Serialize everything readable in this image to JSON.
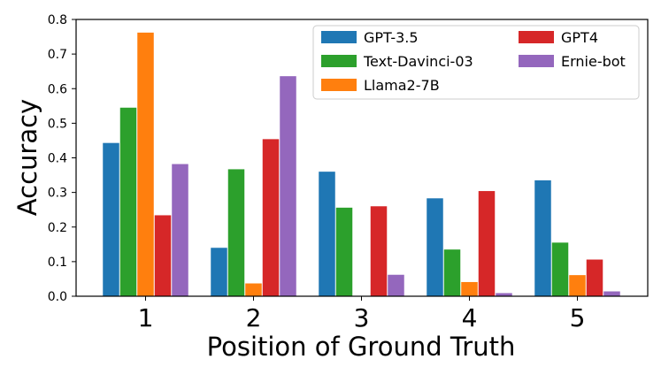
{
  "chart_data": {
    "type": "bar",
    "title": "",
    "xlabel": "Position of Ground Truth",
    "ylabel": "Accuracy",
    "categories": [
      "1",
      "2",
      "3",
      "4",
      "5"
    ],
    "ylim": [
      0,
      0.8
    ],
    "yticks": [
      "0.0",
      "0.1",
      "0.2",
      "0.3",
      "0.4",
      "0.5",
      "0.6",
      "0.7",
      "0.8"
    ],
    "grid": false,
    "legend_position": "top-right",
    "series": [
      {
        "name": "GPT-3.5",
        "color": "#1f77b4",
        "values": [
          0.443,
          0.14,
          0.36,
          0.283,
          0.335
        ]
      },
      {
        "name": "Text-Davinci-03",
        "color": "#2ca02c",
        "values": [
          0.545,
          0.367,
          0.256,
          0.135,
          0.155
        ]
      },
      {
        "name": "Llama2-7B",
        "color": "#ff7f0e",
        "values": [
          0.762,
          0.037,
          0.0,
          0.041,
          0.061
        ]
      },
      {
        "name": "GPT4",
        "color": "#d62728",
        "values": [
          0.234,
          0.454,
          0.26,
          0.304,
          0.106
        ]
      },
      {
        "name": "Ernie-bot",
        "color": "#9467bd",
        "values": [
          0.382,
          0.636,
          0.062,
          0.009,
          0.014
        ]
      }
    ]
  }
}
